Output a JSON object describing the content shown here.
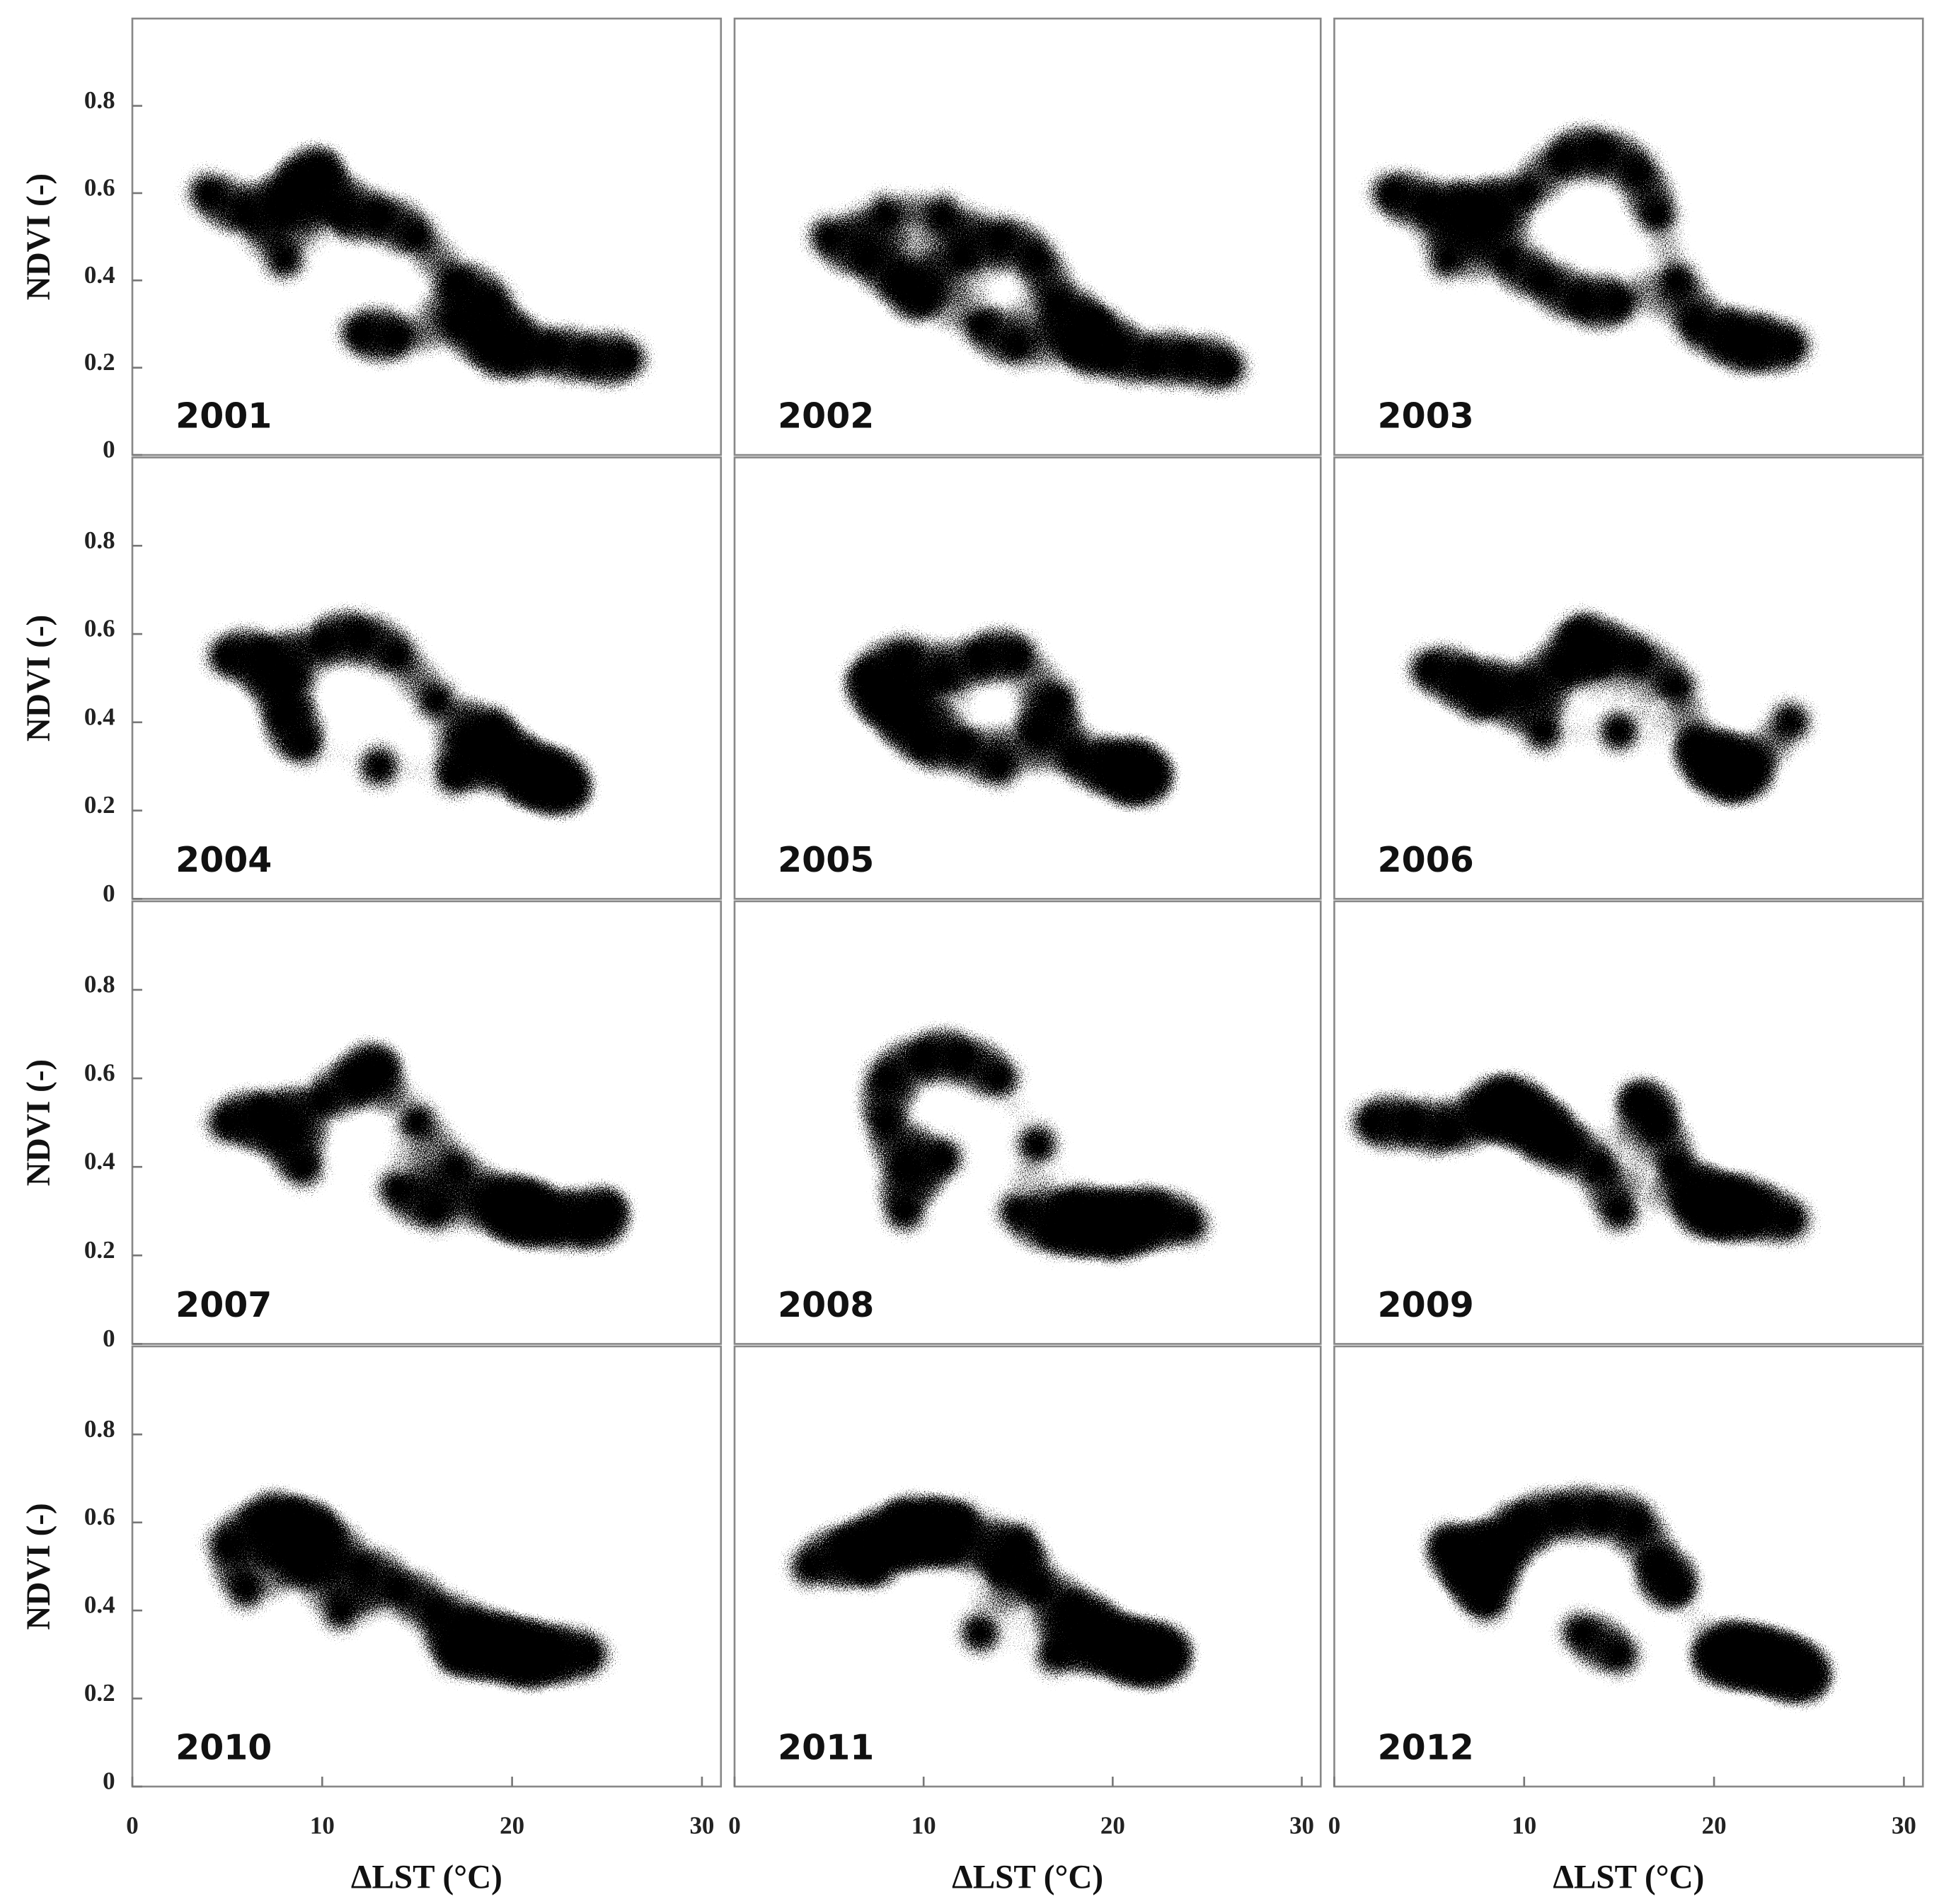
{
  "chart_data": [
    {
      "type": "scatter",
      "title": "2001",
      "ylabel": "NDVI (-)",
      "xlim": [
        0,
        31
      ],
      "ylim": [
        0,
        1
      ],
      "yticks": [
        0,
        0.2,
        0.4,
        0.6,
        0.8
      ],
      "color": "#000000",
      "x": [
        4,
        6,
        8,
        9,
        10,
        11,
        13,
        15,
        17,
        12,
        14,
        17,
        19,
        20,
        22,
        24,
        26,
        8,
        19
      ],
      "y": [
        0.6,
        0.55,
        0.57,
        0.62,
        0.65,
        0.55,
        0.55,
        0.5,
        0.4,
        0.28,
        0.27,
        0.3,
        0.25,
        0.24,
        0.24,
        0.22,
        0.22,
        0.45,
        0.35
      ]
    },
    {
      "type": "scatter",
      "title": "2002",
      "xlim": [
        0,
        31
      ],
      "ylim": [
        0,
        1
      ],
      "color": "#000000",
      "x": [
        5,
        7,
        9,
        10,
        12,
        14,
        16,
        13,
        15,
        18,
        20,
        22,
        24,
        26,
        11,
        17,
        19,
        8
      ],
      "y": [
        0.5,
        0.45,
        0.4,
        0.36,
        0.45,
        0.5,
        0.45,
        0.3,
        0.25,
        0.25,
        0.23,
        0.22,
        0.22,
        0.2,
        0.55,
        0.35,
        0.3,
        0.55
      ]
    },
    {
      "type": "scatter",
      "title": "2003",
      "xlim": [
        0,
        31
      ],
      "ylim": [
        0,
        1
      ],
      "color": "#000000",
      "x": [
        3,
        5,
        7,
        8,
        10,
        12,
        14,
        16,
        17,
        9,
        11,
        18,
        19,
        21,
        22,
        24,
        13,
        15,
        6
      ],
      "y": [
        0.6,
        0.57,
        0.56,
        0.55,
        0.6,
        0.68,
        0.7,
        0.65,
        0.55,
        0.45,
        0.4,
        0.4,
        0.3,
        0.27,
        0.25,
        0.25,
        0.35,
        0.35,
        0.45
      ]
    },
    {
      "type": "scatter",
      "title": "2004",
      "ylabel": "NDVI (-)",
      "xlim": [
        0,
        31
      ],
      "ylim": [
        0,
        1
      ],
      "yticks": [
        0,
        0.2,
        0.4,
        0.6,
        0.8
      ],
      "color": "#000000",
      "x": [
        5,
        7,
        8,
        8,
        10,
        12,
        14,
        16,
        18,
        20,
        21,
        22,
        23,
        9,
        13,
        17,
        19
      ],
      "y": [
        0.55,
        0.55,
        0.5,
        0.42,
        0.58,
        0.6,
        0.55,
        0.45,
        0.35,
        0.3,
        0.28,
        0.27,
        0.25,
        0.35,
        0.3,
        0.28,
        0.38
      ]
    },
    {
      "type": "scatter",
      "title": "2005",
      "xlim": [
        0,
        31
      ],
      "ylim": [
        0,
        1
      ],
      "color": "#000000",
      "x": [
        7,
        8,
        9,
        11,
        13,
        15,
        17,
        10,
        12,
        18,
        20,
        21,
        22,
        14,
        16,
        9
      ],
      "y": [
        0.5,
        0.45,
        0.42,
        0.5,
        0.55,
        0.55,
        0.45,
        0.35,
        0.35,
        0.32,
        0.3,
        0.28,
        0.28,
        0.3,
        0.38,
        0.55
      ]
    },
    {
      "type": "scatter",
      "title": "2006",
      "xlim": [
        0,
        31
      ],
      "ylim": [
        0,
        1
      ],
      "color": "#000000",
      "x": [
        5,
        7,
        8,
        10,
        12,
        14,
        16,
        18,
        20,
        21,
        22,
        24,
        11,
        15,
        19,
        13
      ],
      "y": [
        0.52,
        0.5,
        0.45,
        0.48,
        0.52,
        0.55,
        0.55,
        0.48,
        0.3,
        0.28,
        0.3,
        0.4,
        0.38,
        0.38,
        0.35,
        0.6
      ]
    },
    {
      "type": "scatter",
      "title": "2007",
      "ylabel": "NDVI (-)",
      "xlim": [
        0,
        31
      ],
      "ylim": [
        0,
        1
      ],
      "yticks": [
        0,
        0.2,
        0.4,
        0.6,
        0.8
      ],
      "color": "#000000",
      "x": [
        5,
        7,
        8,
        10,
        12,
        13,
        15,
        17,
        19,
        20,
        21,
        22,
        24,
        9,
        14,
        16,
        25
      ],
      "y": [
        0.5,
        0.52,
        0.48,
        0.55,
        0.6,
        0.62,
        0.5,
        0.4,
        0.32,
        0.3,
        0.3,
        0.28,
        0.27,
        0.4,
        0.35,
        0.3,
        0.3
      ]
    },
    {
      "type": "scatter",
      "title": "2008",
      "xlim": [
        0,
        31
      ],
      "ylim": [
        0,
        1
      ],
      "color": "#000000",
      "x": [
        8,
        8,
        9,
        9,
        10,
        12,
        14,
        16,
        18,
        19,
        20,
        21,
        22,
        24,
        15,
        17,
        11
      ],
      "y": [
        0.6,
        0.5,
        0.4,
        0.3,
        0.65,
        0.65,
        0.6,
        0.45,
        0.3,
        0.28,
        0.25,
        0.27,
        0.3,
        0.27,
        0.3,
        0.25,
        0.42
      ]
    },
    {
      "type": "scatter",
      "title": "2009",
      "xlim": [
        0,
        31
      ],
      "ylim": [
        0,
        1
      ],
      "color": "#000000",
      "x": [
        2,
        4,
        6,
        8,
        9,
        10,
        11,
        12,
        14,
        16,
        17,
        18,
        19,
        20,
        21,
        22,
        24,
        15
      ],
      "y": [
        0.5,
        0.5,
        0.48,
        0.52,
        0.55,
        0.52,
        0.48,
        0.45,
        0.4,
        0.55,
        0.5,
        0.4,
        0.32,
        0.3,
        0.32,
        0.3,
        0.28,
        0.3
      ]
    },
    {
      "type": "scatter",
      "title": "2010",
      "ylabel": "NDVI (-)",
      "xlabel": "ΔLST (°C)",
      "xlim": [
        0,
        31
      ],
      "ylim": [
        0,
        1
      ],
      "xticks": [
        0,
        10,
        20,
        30
      ],
      "yticks": [
        0,
        0.2,
        0.4,
        0.6,
        0.8
      ],
      "color": "#000000",
      "x": [
        5,
        7,
        8,
        9,
        9,
        10,
        12,
        14,
        16,
        18,
        19,
        20,
        21,
        22,
        24,
        11,
        17,
        6
      ],
      "y": [
        0.55,
        0.6,
        0.6,
        0.55,
        0.5,
        0.58,
        0.5,
        0.45,
        0.4,
        0.35,
        0.32,
        0.3,
        0.3,
        0.3,
        0.3,
        0.4,
        0.3,
        0.45
      ]
    },
    {
      "type": "scatter",
      "title": "2011",
      "xlabel": "ΔLST (°C)",
      "xlim": [
        0,
        31
      ],
      "ylim": [
        0,
        1
      ],
      "xticks": [
        0,
        10,
        20,
        30
      ],
      "color": "#000000",
      "x": [
        4,
        6,
        7,
        8,
        9,
        10,
        11,
        12,
        14,
        16,
        18,
        19,
        20,
        21,
        22,
        23,
        13,
        17,
        15
      ],
      "y": [
        0.5,
        0.55,
        0.5,
        0.55,
        0.6,
        0.58,
        0.55,
        0.6,
        0.5,
        0.45,
        0.4,
        0.35,
        0.32,
        0.3,
        0.3,
        0.3,
        0.35,
        0.3,
        0.55
      ]
    },
    {
      "type": "scatter",
      "title": "2012",
      "xlabel": "ΔLST (°C)",
      "xlim": [
        0,
        31
      ],
      "ylim": [
        0,
        1
      ],
      "xticks": [
        0,
        10,
        20,
        30
      ],
      "color": "#000000",
      "x": [
        6,
        7,
        8,
        8,
        9,
        10,
        12,
        14,
        16,
        18,
        20,
        21,
        22,
        23,
        24,
        25,
        13,
        15,
        17
      ],
      "y": [
        0.55,
        0.5,
        0.5,
        0.42,
        0.55,
        0.6,
        0.62,
        0.62,
        0.6,
        0.45,
        0.3,
        0.3,
        0.3,
        0.28,
        0.27,
        0.25,
        0.35,
        0.3,
        0.5
      ]
    }
  ]
}
